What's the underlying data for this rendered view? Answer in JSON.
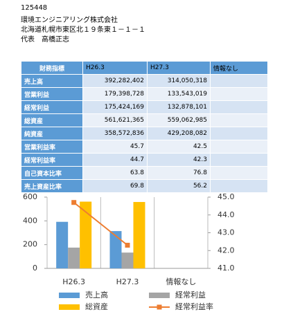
{
  "header": {
    "code": "125448",
    "company": "環境エンジニアリング株式会社",
    "address": "北海道札幌市東区北１９条東１－１－１",
    "representative": "代表　高橋正志"
  },
  "table": {
    "headers": [
      "財務指標",
      "H26.3",
      "H27.3",
      "情報なし"
    ],
    "rows": [
      [
        "売上高",
        "392,282,402",
        "314,050,318",
        ""
      ],
      [
        "営業利益",
        "179,398,728",
        "133,543,019",
        ""
      ],
      [
        "経常利益",
        "175,424,169",
        "132,878,101",
        ""
      ],
      [
        "総資産",
        "561,621,365",
        "559,062,985",
        ""
      ],
      [
        "純資産",
        "358,572,836",
        "429,208,082",
        ""
      ],
      [
        "営業利益率",
        "45.7",
        "42.5",
        ""
      ],
      [
        "経常利益率",
        "44.7",
        "42.3",
        ""
      ],
      [
        "自己資本比率",
        "63.8",
        "76.8",
        ""
      ],
      [
        "売上資産比率",
        "69.8",
        "56.2",
        ""
      ]
    ]
  },
  "chart_data": {
    "type": "bar",
    "categories": [
      "H26.3",
      "H27.3",
      "情報なし"
    ],
    "series": [
      {
        "name": "売上高",
        "color": "#5b9bd5",
        "values": [
          392,
          314,
          null
        ]
      },
      {
        "name": "経常利益",
        "color": "#a5a5a5",
        "values": [
          175,
          133,
          null
        ]
      },
      {
        "name": "総資産",
        "color": "#ffc000",
        "values": [
          562,
          559,
          null
        ]
      },
      {
        "name": "経常利益率",
        "color": "#ed7d31",
        "type": "line",
        "axis": "y2",
        "values": [
          44.7,
          42.3,
          null
        ]
      }
    ],
    "ylim": [
      0,
      600
    ],
    "yticks": [
      0,
      200,
      400,
      600
    ],
    "y2lim": [
      41,
      45
    ],
    "y2ticks": [
      {
        "value": 41,
        "label": "41.0"
      },
      {
        "value": 42,
        "label": "42.0"
      },
      {
        "value": 43,
        "label": "43.0"
      },
      {
        "value": 44,
        "label": "44.0"
      },
      {
        "value": 45,
        "label": "45.0"
      }
    ]
  }
}
